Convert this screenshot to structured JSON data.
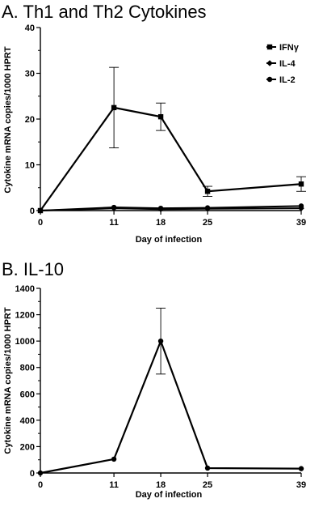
{
  "chart_data": [
    {
      "panel": "A",
      "type": "line",
      "title": "A. Th1 and Th2 Cytokines",
      "xlabel": "Day of infection",
      "ylabel": "Cytokine mRNA copies/1000 HPRT",
      "x": [
        0,
        11,
        18,
        25,
        39
      ],
      "xticks": [
        "0",
        "11",
        "18",
        "25",
        "39"
      ],
      "ylim": [
        0,
        40
      ],
      "yticks": [
        "0",
        "10",
        "20",
        "30",
        "40"
      ],
      "grid": false,
      "legend_placement": "top-right",
      "series": [
        {
          "name": "IFNγ",
          "marker": "square",
          "values": [
            0,
            22.5,
            20.5,
            4.2,
            5.8
          ],
          "errors": [
            0,
            8.8,
            3.0,
            1.1,
            1.6
          ]
        },
        {
          "name": "IL-4",
          "marker": "diamond",
          "values": [
            0,
            0.5,
            0.3,
            0.4,
            0.5
          ],
          "errors": [
            0,
            0,
            0,
            0,
            0
          ]
        },
        {
          "name": "IL-2",
          "marker": "circle",
          "values": [
            0,
            0.7,
            0.5,
            0.6,
            1.0
          ],
          "errors": [
            0,
            0,
            0,
            0,
            0
          ]
        }
      ]
    },
    {
      "panel": "B",
      "type": "line",
      "title": "B. IL-10",
      "xlabel": "Day of infection",
      "ylabel": "Cytokine mRNA copies/1000 HPRT",
      "x": [
        0,
        11,
        18,
        25,
        39
      ],
      "xticks": [
        "0",
        "11",
        "18",
        "25",
        "39"
      ],
      "ylim": [
        0,
        1400
      ],
      "yticks": [
        "0",
        "200",
        "400",
        "600",
        "800",
        "1000",
        "1200",
        "1400"
      ],
      "grid": false,
      "series": [
        {
          "marker": "circle",
          "values": [
            0,
            105,
            1000,
            37,
            33
          ],
          "errors": [
            0,
            0,
            250,
            0,
            0
          ]
        }
      ]
    }
  ]
}
